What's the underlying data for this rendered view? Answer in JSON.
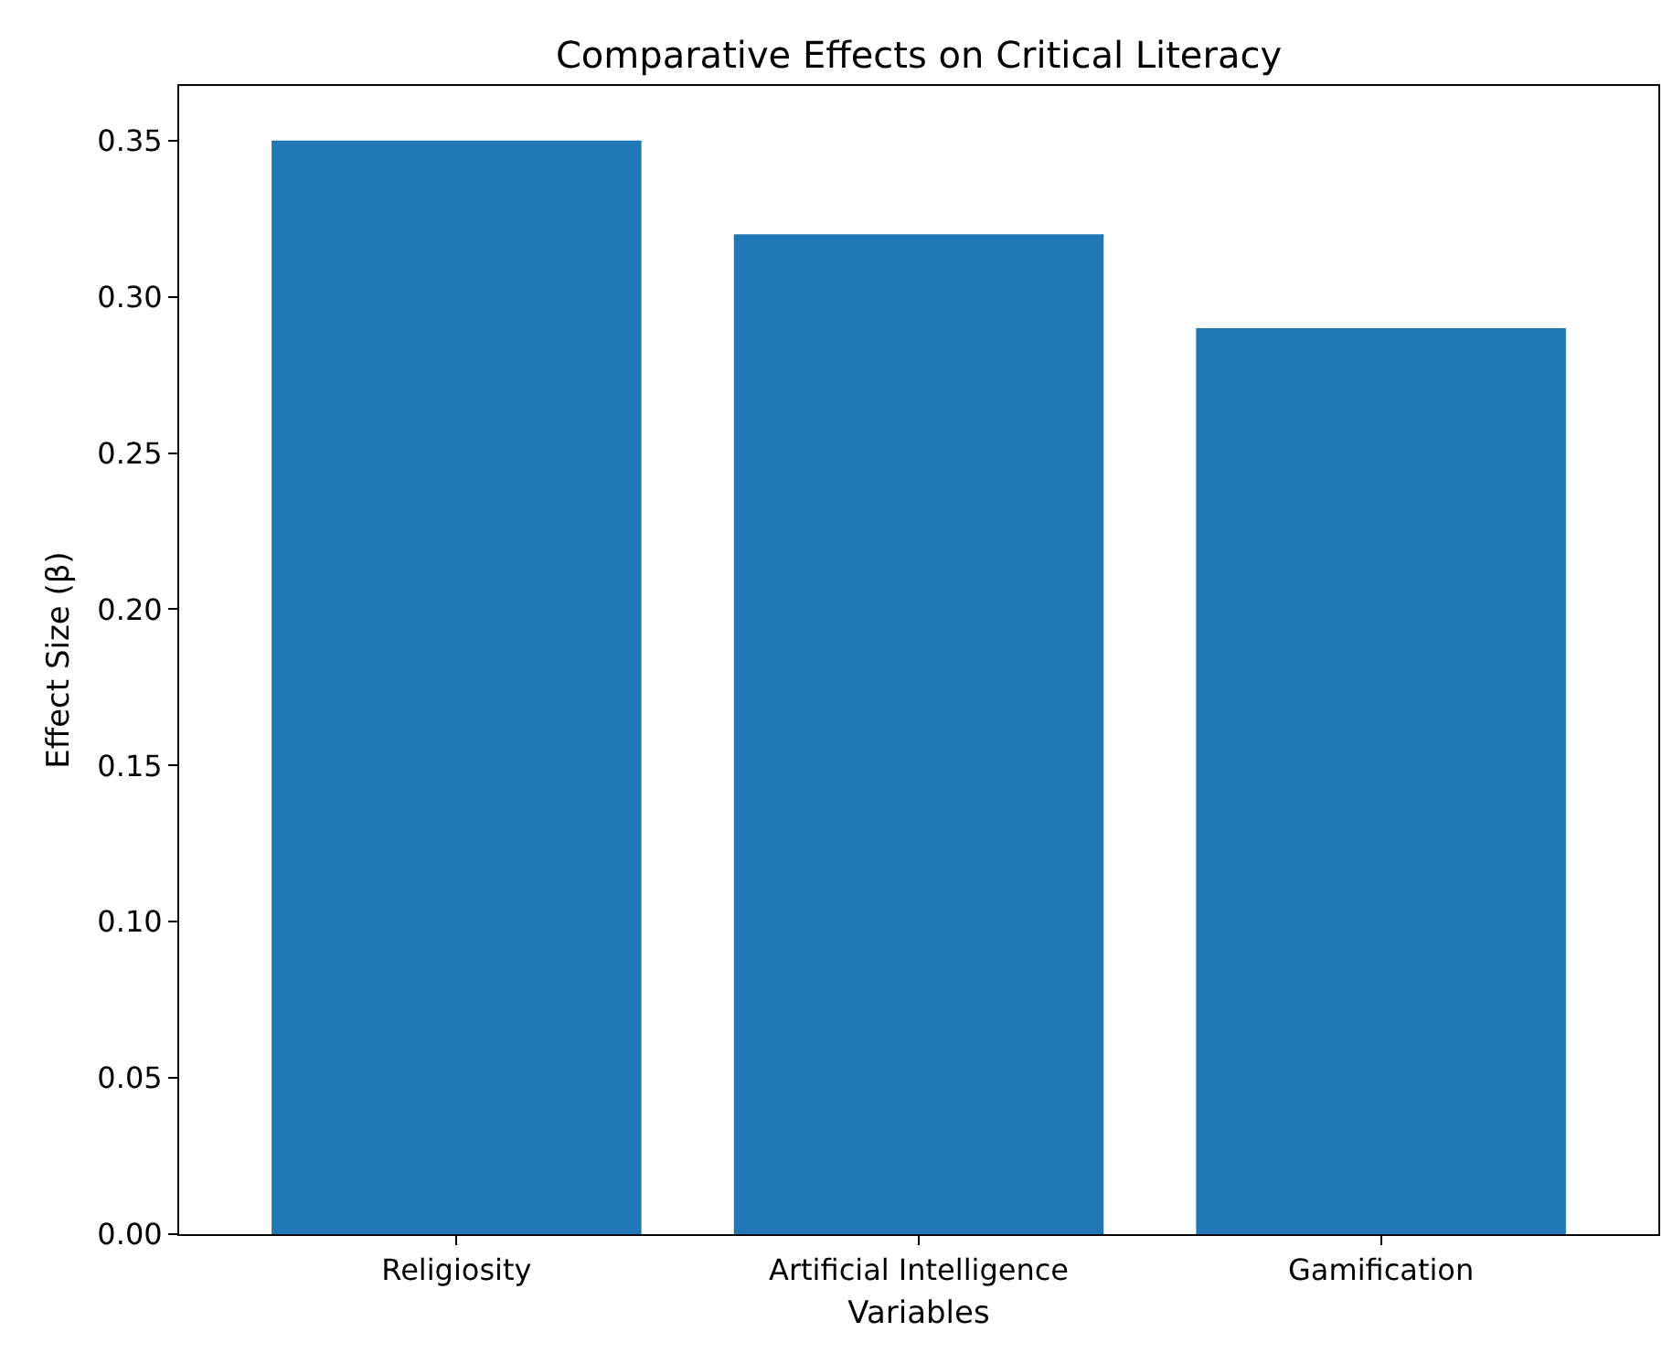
{
  "chart_data": {
    "type": "bar",
    "title": "Comparative Effects on Critical Literacy",
    "xlabel": "Variables",
    "ylabel": "Effect Size (β)",
    "categories": [
      "Religiosity",
      "Artificial Intelligence",
      "Gamification"
    ],
    "values": [
      0.35,
      0.32,
      0.29
    ],
    "color": "#1f77b4",
    "ylim": [
      0,
      0.3675
    ],
    "yticks": [
      {
        "value": 0,
        "label": "0.00"
      },
      {
        "value": 0.05,
        "label": "0.05"
      },
      {
        "value": 0.1,
        "label": "0.10"
      },
      {
        "value": 0.15,
        "label": "0.15"
      },
      {
        "value": 0.2,
        "label": "0.20"
      },
      {
        "value": 0.25,
        "label": "0.25"
      },
      {
        "value": 0.3,
        "label": "0.30"
      },
      {
        "value": 0.35,
        "label": "0.35"
      }
    ]
  }
}
